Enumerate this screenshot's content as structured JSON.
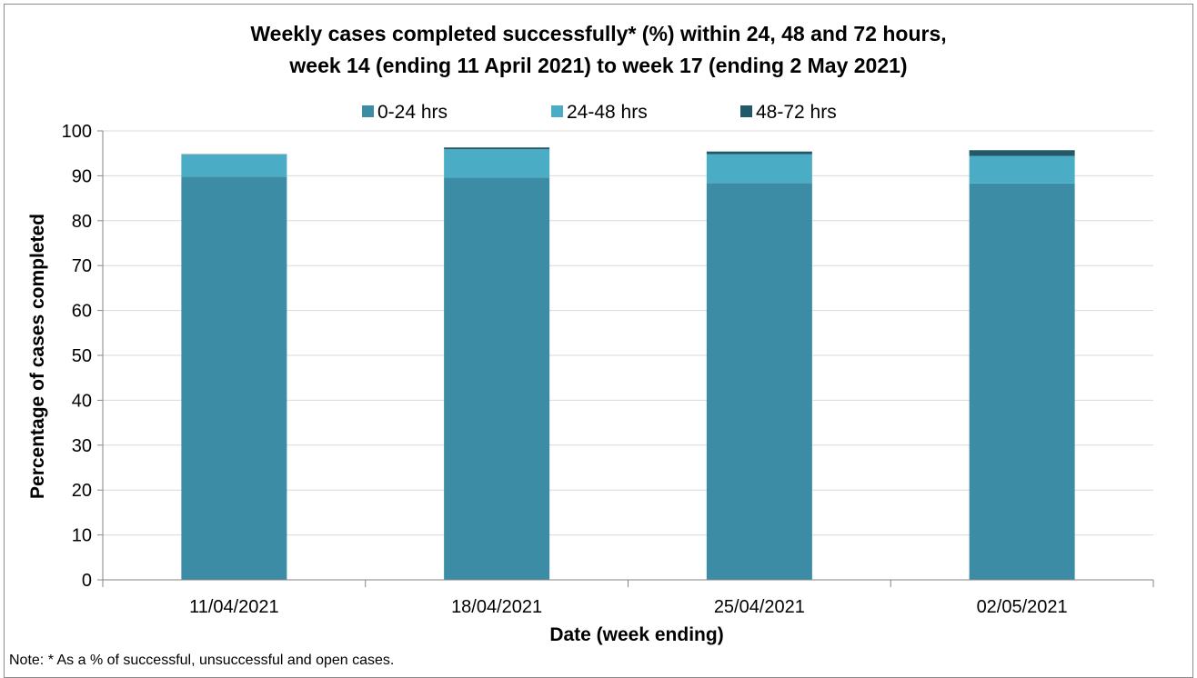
{
  "chart_data": {
    "type": "bar",
    "stacked": true,
    "title_lines": [
      "Weekly cases completed successfully* (%) within 24, 48 and 72 hours,",
      "week 14 (ending 11 April 2021) to week 17 (ending 2 May 2021)"
    ],
    "xlabel": "Date (week ending)",
    "ylabel": "Percentage of cases completed",
    "ylim": [
      0,
      100
    ],
    "yticks": [
      0,
      10,
      20,
      30,
      40,
      50,
      60,
      70,
      80,
      90,
      100
    ],
    "grid": true,
    "legend_position": "top",
    "categories": [
      "11/04/2021",
      "18/04/2021",
      "25/04/2021",
      "02/05/2021"
    ],
    "series": [
      {
        "name": "0-24 hrs",
        "color": "#3d8ca5",
        "values": [
          89.8,
          89.6,
          88.4,
          88.3
        ]
      },
      {
        "name": "24-48 hrs",
        "color": "#4bacc6",
        "values": [
          4.9,
          6.3,
          6.4,
          6.1
        ]
      },
      {
        "name": "48-72 hrs",
        "color": "#215968",
        "values": [
          0.1,
          0.4,
          0.6,
          1.3
        ]
      }
    ],
    "note": "Note: * As a % of successful, unsuccessful and open cases."
  }
}
